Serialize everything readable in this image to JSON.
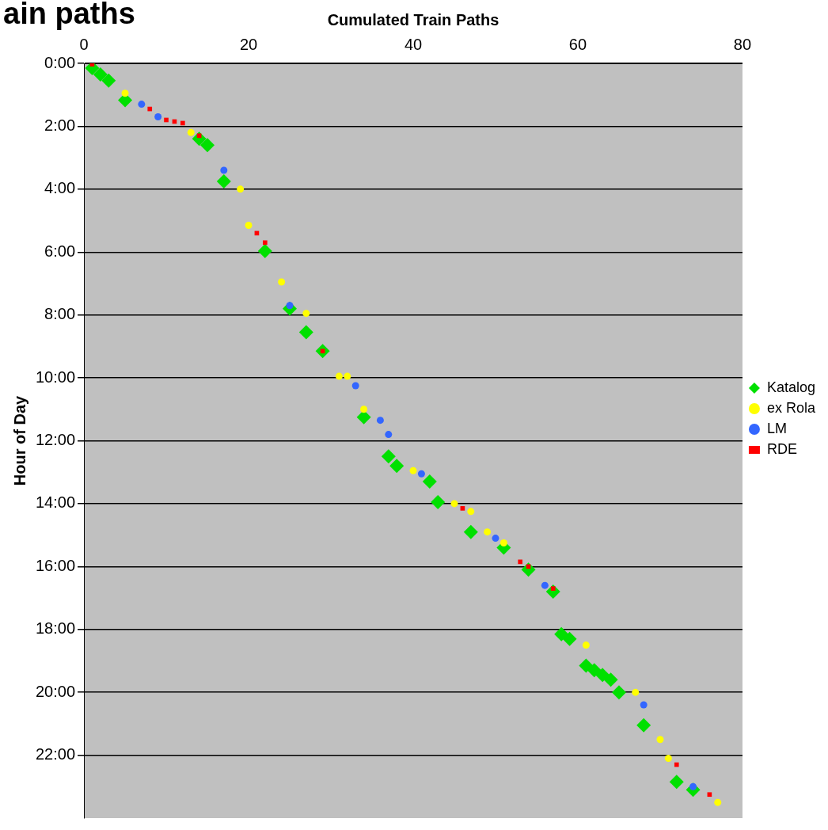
{
  "chart_data": {
    "type": "scatter",
    "title": "ain paths",
    "xlabel": "Cumulated Train Paths",
    "ylabel": "Hour of Day",
    "xlim": [
      0,
      80
    ],
    "xticks": [
      0,
      20,
      40,
      60,
      80
    ],
    "ylim": [
      24,
      0
    ],
    "yticks": [
      {
        "value": 0,
        "label": "0:00"
      },
      {
        "value": 2,
        "label": "2:00"
      },
      {
        "value": 4,
        "label": "4:00"
      },
      {
        "value": 6,
        "label": "6:00"
      },
      {
        "value": 8,
        "label": "8:00"
      },
      {
        "value": 10,
        "label": "10:00"
      },
      {
        "value": 12,
        "label": "12:00"
      },
      {
        "value": 14,
        "label": "14:00"
      },
      {
        "value": 16,
        "label": "16:00"
      },
      {
        "value": 18,
        "label": "18:00"
      },
      {
        "value": 20,
        "label": "20:00"
      },
      {
        "value": 22,
        "label": "22:00"
      }
    ],
    "grid": "y",
    "legend": "right",
    "series": [
      {
        "name": "Katalog",
        "color": "#00e000",
        "marker": "diamond",
        "x": [
          1,
          2,
          3,
          5,
          14,
          15,
          17,
          22,
          25,
          27,
          29,
          34,
          37,
          38,
          42,
          43,
          47,
          51,
          54,
          57,
          58,
          59,
          61,
          62,
          63,
          64,
          65,
          68,
          72,
          74
        ],
        "values": [
          0.15,
          0.35,
          0.55,
          1.17,
          2.4,
          2.6,
          3.75,
          5.97,
          7.8,
          8.55,
          9.15,
          11.25,
          12.5,
          12.8,
          13.3,
          13.95,
          14.9,
          15.4,
          16.1,
          16.8,
          18.15,
          18.3,
          19.15,
          19.3,
          19.45,
          19.6,
          20.0,
          21.05,
          22.85,
          23.1
        ]
      },
      {
        "name": "ex Rola",
        "color": "#ffff00",
        "marker": "circle",
        "x": [
          5,
          13,
          19,
          20,
          24,
          27,
          31,
          32,
          34,
          40,
          45,
          47,
          49,
          51,
          61,
          67,
          70,
          71,
          77
        ],
        "values": [
          0.95,
          2.2,
          4.0,
          5.15,
          6.95,
          7.95,
          9.95,
          9.95,
          11.0,
          12.95,
          14.0,
          14.25,
          14.9,
          15.25,
          18.5,
          20.0,
          21.5,
          22.1,
          23.5
        ]
      },
      {
        "name": "LM",
        "color": "#3366ff",
        "marker": "circle",
        "x": [
          7,
          9,
          17,
          25,
          33,
          36,
          37,
          41,
          50,
          56,
          68,
          74
        ],
        "values": [
          1.3,
          1.7,
          3.4,
          7.7,
          10.25,
          11.35,
          11.8,
          13.05,
          15.1,
          16.6,
          20.4,
          23.0
        ]
      },
      {
        "name": "RDE",
        "color": "#ff0000",
        "marker": "square",
        "x": [
          1,
          8,
          10,
          11,
          12,
          14,
          21,
          22,
          29,
          46,
          53,
          54,
          57,
          72,
          76
        ],
        "values": [
          0.03,
          1.45,
          1.8,
          1.85,
          1.9,
          2.3,
          5.4,
          5.7,
          9.15,
          14.15,
          15.85,
          16.0,
          16.7,
          22.3,
          23.25
        ]
      }
    ]
  }
}
